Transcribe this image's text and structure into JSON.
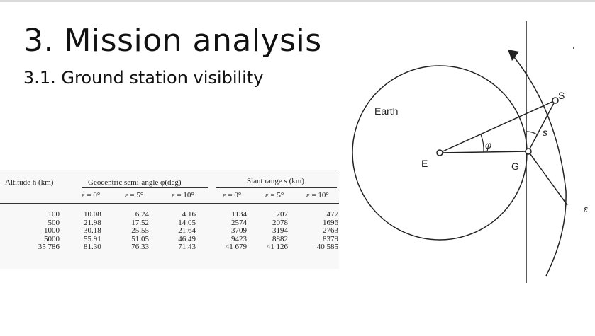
{
  "slide": {
    "title": "3. Mission analysis",
    "subtitle": "3.1. Ground station visibility"
  },
  "table": {
    "altitude_header": "Altitude h (km)",
    "angle_group_header": "Geocentric semi-angle φ(deg)",
    "range_group_header": "Slant range s (km)",
    "eps_labels": [
      "ε = 0°",
      "ε = 5°",
      "ε = 10°",
      "ε = 0°",
      "ε = 5°",
      "ε = 10°"
    ],
    "altitudes": [
      "100",
      "500",
      "1000",
      "5000",
      "35 786"
    ],
    "semi_angle": {
      "e0": [
        "10.08",
        "21.98",
        "30.18",
        "55.91",
        "81.30"
      ],
      "e5": [
        "6.24",
        "17.52",
        "25.55",
        "51.05",
        "76.33"
      ],
      "e10": [
        "4.16",
        "14.05",
        "21.64",
        "46.49",
        "71.43"
      ]
    },
    "slant_range": {
      "e0": [
        "1134",
        "2574",
        "3709",
        "9423",
        "41 679"
      ],
      "e5": [
        "707",
        "2078",
        "3194",
        "8882",
        "41 126"
      ],
      "e10": [
        "477",
        "1696",
        "2763",
        "8379",
        "40 585"
      ]
    }
  },
  "diagram": {
    "labels": {
      "earth": "Earth",
      "center": "E",
      "ground_station": "G",
      "satellite": "S",
      "slant": "s",
      "angle": "φ",
      "elevation": "ε"
    }
  }
}
